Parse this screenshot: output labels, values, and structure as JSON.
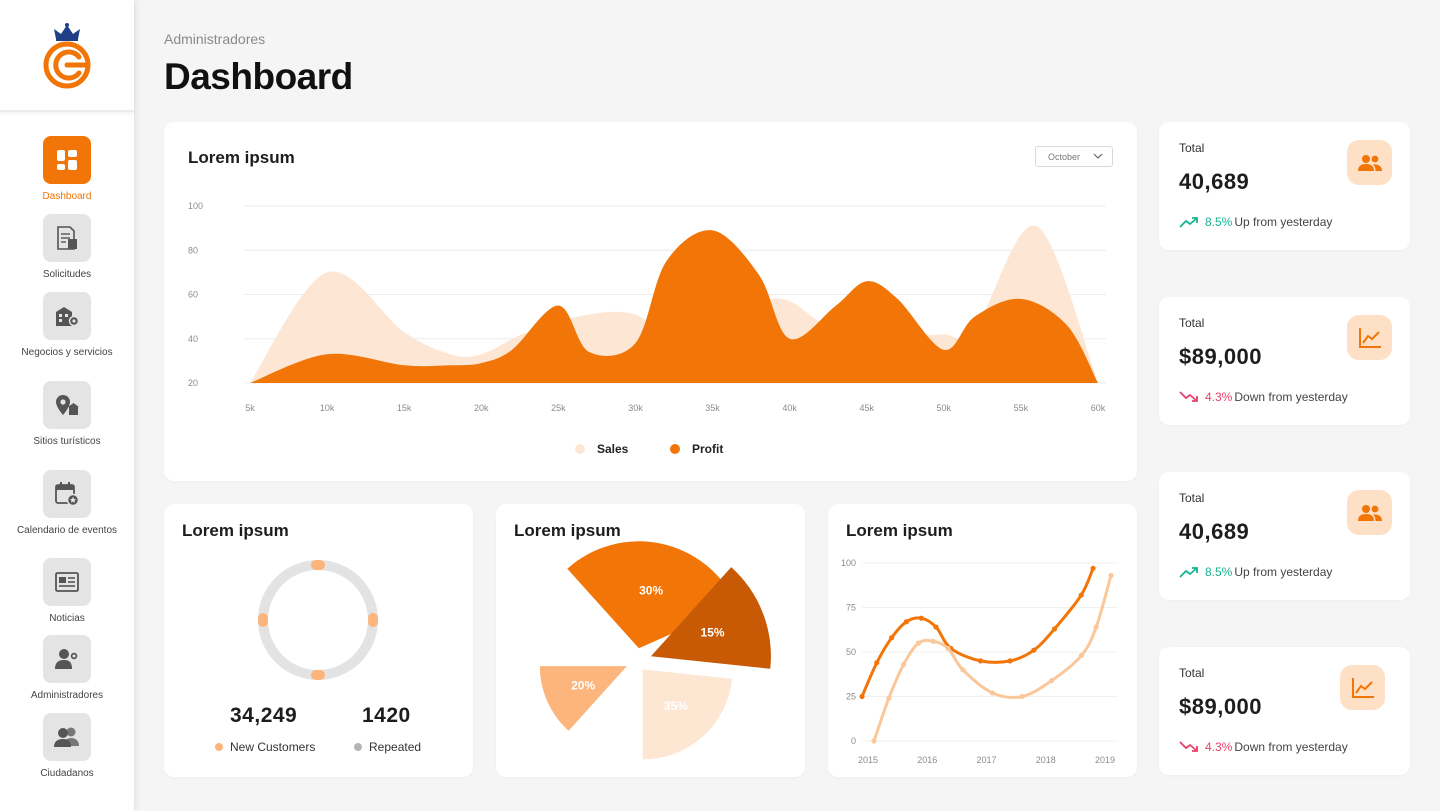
{
  "colors": {
    "accent": "#f27507",
    "accent_light": "#fde6d2",
    "accent_mid": "#fbb57d",
    "accent_dark": "#c85a05",
    "up": "#1ab394",
    "down": "#e9426a"
  },
  "sidebar": {
    "logo_icon": "ciudad-logo-icon",
    "items": [
      {
        "label": "Dashboard",
        "icon": "dashboard-grid-icon"
      },
      {
        "label": "Solicitudes",
        "icon": "document-form-icon"
      },
      {
        "label": "Negocios y servicios",
        "icon": "business-building-icon"
      },
      {
        "label": "Sitios turísticos",
        "icon": "tourist-map-pin-icon"
      },
      {
        "label": "Calendario de eventos",
        "icon": "calendar-event-icon"
      },
      {
        "label": "Noticias",
        "icon": "newspaper-icon"
      },
      {
        "label": "Administradores",
        "icon": "admin-user-gear-icon"
      },
      {
        "label": "Ciudadanos",
        "icon": "citizens-group-icon"
      }
    ]
  },
  "header": {
    "breadcrumb": "Administradores",
    "title": "Dashboard"
  },
  "main_chart": {
    "title": "Lorem ipsum",
    "month_select": "October"
  },
  "kpis": [
    {
      "label": "Total",
      "value": "40,689",
      "pct": "8.5%",
      "trend_text": "Up from yesterday",
      "dir": "up",
      "icon": "users-icon"
    },
    {
      "label": "Total",
      "value": "$89,000",
      "pct": "4.3%",
      "trend_text": "Down from yesterday",
      "dir": "down",
      "icon": "line-chart-icon"
    },
    {
      "label": "Total",
      "value": "40,689",
      "pct": "8.5%",
      "trend_text": "Up from yesterday",
      "dir": "up",
      "icon": "users-icon"
    },
    {
      "label": "Total",
      "value": "$89,000",
      "pct": "4.3%",
      "trend_text": "Down from yesterday",
      "dir": "down",
      "icon": "line-chart-icon"
    }
  ],
  "donut_card": {
    "title": "Lorem ipsum",
    "new_customers": {
      "value": "34,249",
      "label": "New Customers"
    },
    "repeated": {
      "value": "1420",
      "label": "Repeated"
    }
  },
  "pie_card": {
    "title": "Lorem ipsum"
  },
  "line_card": {
    "title": "Lorem ipsum"
  },
  "chart_data": [
    {
      "type": "area",
      "title": "Lorem ipsum",
      "x": [
        5,
        10,
        15,
        20,
        25,
        30,
        35,
        40,
        45,
        50,
        55,
        60
      ],
      "x_tick_labels": [
        "5k",
        "10k",
        "15k",
        "20k",
        "25k",
        "30k",
        "35k",
        "40k",
        "45k",
        "50k",
        "55k",
        "60k"
      ],
      "y_ticks": [
        20,
        40,
        60,
        80,
        100
      ],
      "ylim": [
        20,
        100
      ],
      "grid": true,
      "legend_position": "bottom-center",
      "series": [
        {
          "name": "Sales",
          "points": [
            [
              5,
              20
            ],
            [
              10,
              70
            ],
            [
              15,
              43
            ],
            [
              18,
              33
            ],
            [
              20,
              33
            ],
            [
              23,
              43
            ],
            [
              27,
              51
            ],
            [
              30,
              51
            ],
            [
              32,
              40
            ],
            [
              35,
              43
            ],
            [
              38,
              56
            ],
            [
              40,
              57
            ],
            [
              43,
              44
            ],
            [
              48,
              42
            ],
            [
              50,
              42
            ],
            [
              52,
              44
            ],
            [
              56,
              91
            ],
            [
              60,
              20
            ]
          ]
        },
        {
          "name": "Profit",
          "points": [
            [
              5,
              20
            ],
            [
              10,
              33
            ],
            [
              15,
              28
            ],
            [
              18,
              28
            ],
            [
              20,
              29
            ],
            [
              22,
              35
            ],
            [
              25,
              55
            ],
            [
              27,
              34
            ],
            [
              30,
              38
            ],
            [
              32,
              75
            ],
            [
              35,
              89
            ],
            [
              38,
              69
            ],
            [
              40,
              40
            ],
            [
              43,
              55
            ],
            [
              45,
              66
            ],
            [
              47,
              58
            ],
            [
              50,
              35
            ],
            [
              52,
              50
            ],
            [
              55,
              58
            ],
            [
              58,
              46
            ],
            [
              60,
              20
            ]
          ]
        }
      ]
    },
    {
      "type": "pie",
      "variant": "donut",
      "series": [
        {
          "name": "Segments",
          "values": [
            25,
            25,
            25,
            25
          ]
        }
      ],
      "ring_markers": 4
    },
    {
      "type": "pie",
      "slices": [
        {
          "label": "30%",
          "value": 30
        },
        {
          "label": "15%",
          "value": 15
        },
        {
          "label": "35%",
          "value": 35
        },
        {
          "label": "20%",
          "value": 20
        }
      ]
    },
    {
      "type": "line",
      "x": [
        2015,
        2016,
        2017,
        2018,
        2019
      ],
      "x_tick_labels": [
        "2015",
        "2016",
        "2017",
        "2018",
        "2019"
      ],
      "y_ticks": [
        0,
        25,
        50,
        75,
        100
      ],
      "ylim": [
        0,
        100
      ],
      "grid": true,
      "series": [
        {
          "name": "",
          "points": [
            [
              2015,
              25
            ],
            [
              2015.25,
              44
            ],
            [
              2015.5,
              58
            ],
            [
              2015.75,
              67
            ],
            [
              2016,
              69
            ],
            [
              2016.25,
              64
            ],
            [
              2016.5,
              52
            ],
            [
              2017,
              45
            ],
            [
              2017.5,
              45
            ],
            [
              2017.9,
              51
            ],
            [
              2018.25,
              63
            ],
            [
              2018.7,
              82
            ],
            [
              2018.9,
              97
            ]
          ]
        },
        {
          "name": "",
          "points": [
            [
              2015,
              0
            ],
            [
              2015.25,
              24
            ],
            [
              2015.5,
              43
            ],
            [
              2015.75,
              55
            ],
            [
              2016,
              56
            ],
            [
              2016.25,
              52
            ],
            [
              2016.5,
              40
            ],
            [
              2017,
              27
            ],
            [
              2017.5,
              25
            ],
            [
              2018,
              34
            ],
            [
              2018.5,
              48
            ],
            [
              2018.75,
              64
            ],
            [
              2019,
              93
            ]
          ]
        }
      ]
    }
  ]
}
